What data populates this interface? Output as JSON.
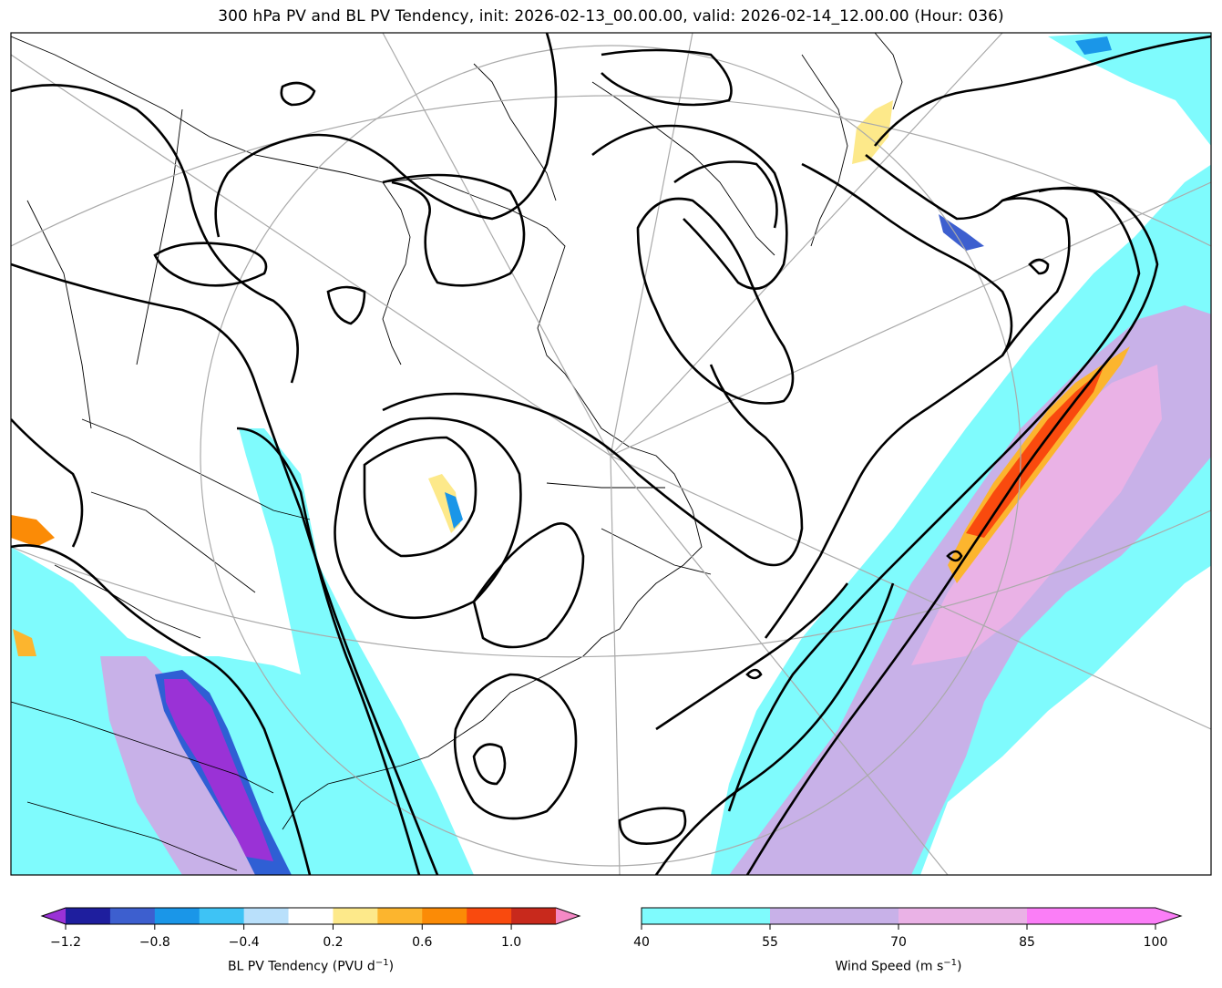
{
  "title": "300 hPa PV and BL PV Tendency, init: 2026-02-13_00.00.00, valid: 2026-02-14_12.00.00 (Hour: 036)",
  "colorbars": {
    "pv_tendency": {
      "label_main": "BL PV Tendency (PVU d",
      "label_exp": "−1",
      "label_close": ")",
      "ticks": [
        "−1.2",
        "−0.8",
        "−0.4",
        "0.2",
        "0.6",
        "1.0"
      ],
      "colors": [
        "#1e1e9e",
        "#3d5fcf",
        "#1a96e8",
        "#3ec3f5",
        "#b9e0fb",
        "#ffffff",
        "#fde98a",
        "#fcb52e",
        "#fb8b06",
        "#f94a0e",
        "#c8291c"
      ],
      "under_color": "#9a32d6",
      "over_color": "#f589c6"
    },
    "wind_speed": {
      "label_main": "Wind Speed (m s",
      "label_exp": "−1",
      "label_close": ")",
      "ticks": [
        "40",
        "55",
        "70",
        "85",
        "100"
      ],
      "colors": [
        "#7ffbfd",
        "#c8b1e8",
        "#eab2e6",
        "#fb7ef7"
      ]
    }
  }
}
